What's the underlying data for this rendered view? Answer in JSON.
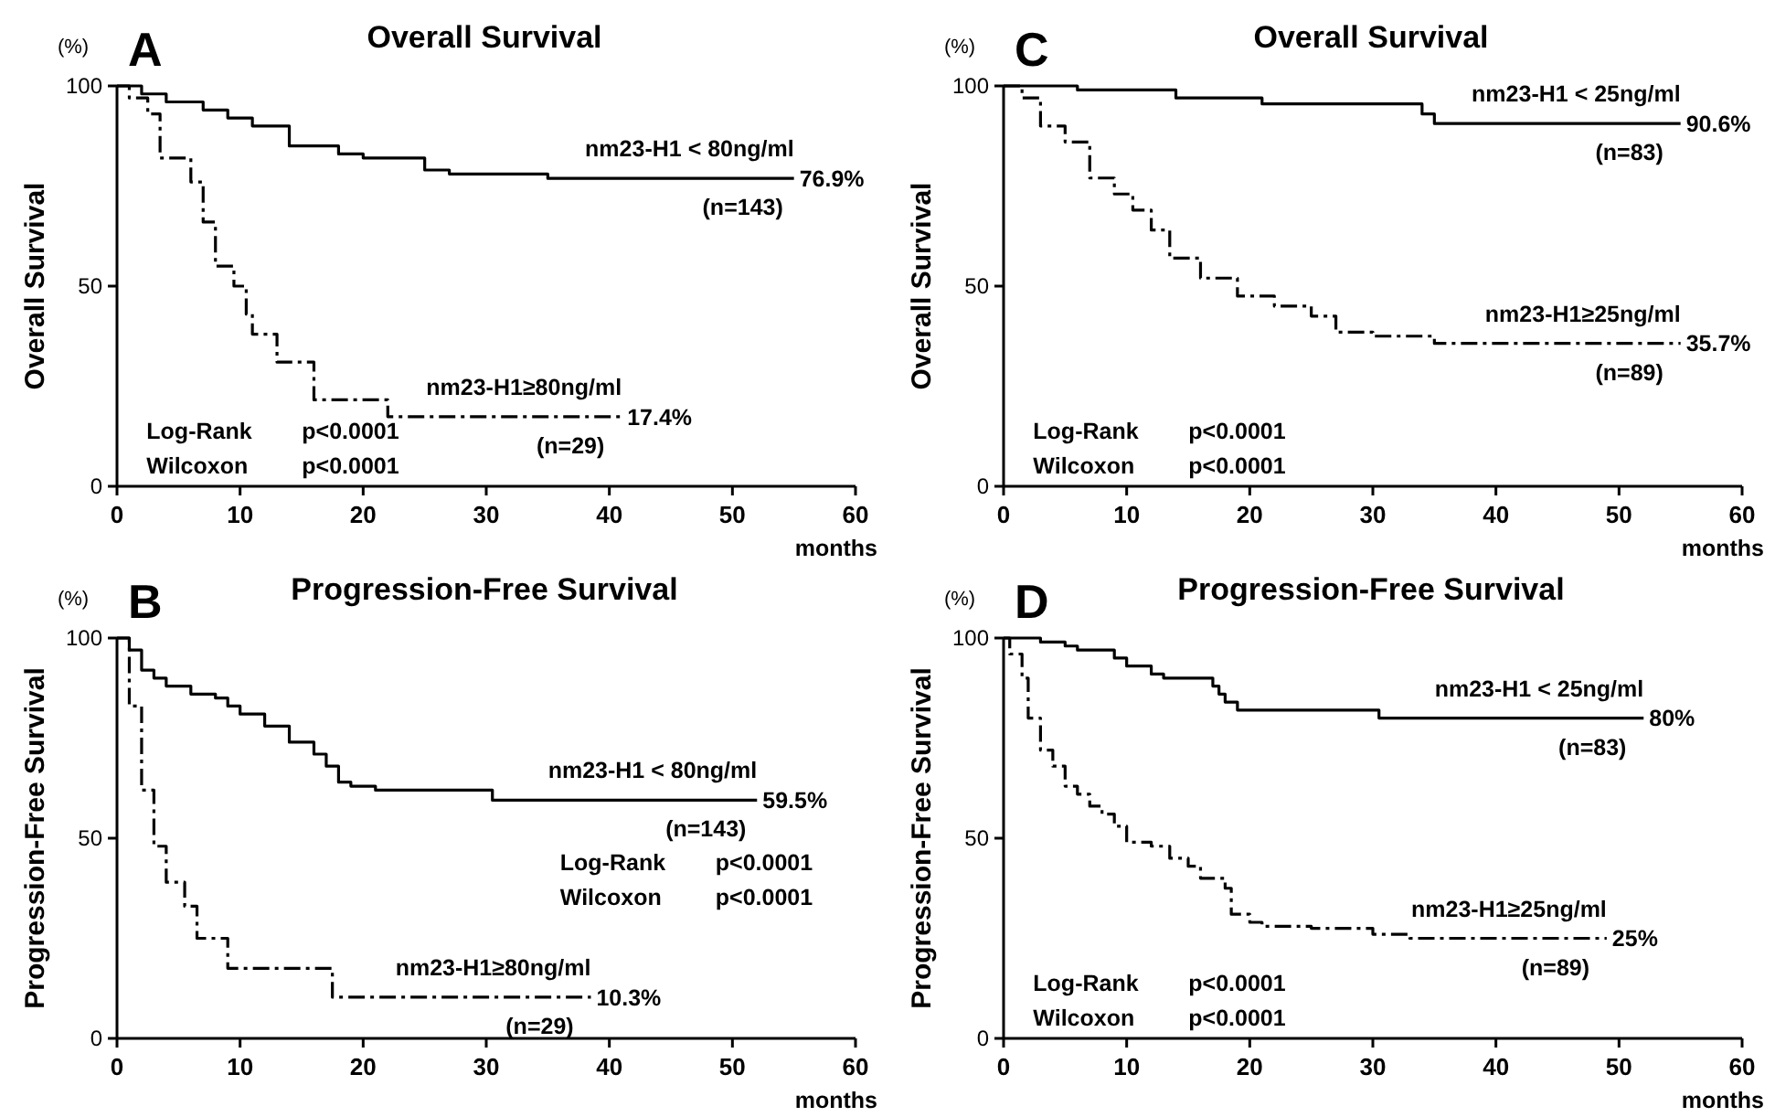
{
  "chart_data": [
    {
      "type": "step",
      "title": "Overall Survival",
      "ylabel": "Overall Survival",
      "xlabel": "months",
      "xlim": [
        0,
        60
      ],
      "xticks": [
        0,
        10,
        20,
        30,
        40,
        50,
        60
      ],
      "ylim": [
        0,
        100
      ],
      "yticks": [
        0,
        50,
        100
      ],
      "legend": false,
      "grid": false,
      "annotations": [
        "A",
        "(%)",
        "Log-Rank",
        "p<0.0001",
        "Wilcoxon",
        "p<0.0001",
        "(n=143)",
        "(n=29)",
        {
          "text": "76.9%",
          "x": 55,
          "y": 76.9
        },
        {
          "text": "17.4%",
          "x": 41,
          "y": 17.4
        }
      ],
      "series": [
        {
          "name": "nm23-H1 < 80ng/ml",
          "color": "#000000",
          "line_style": "solid",
          "x": [
            0,
            2,
            4,
            7,
            9,
            11,
            14,
            18,
            20,
            25,
            27,
            35,
            55
          ],
          "values": [
            100,
            98,
            96,
            94,
            92,
            90,
            85,
            83,
            82,
            79,
            78,
            76.9,
            76.9
          ]
        },
        {
          "name": "nm23-H1≥80ng/ml",
          "color": "#000000",
          "line_style": "dashed",
          "x": [
            0,
            1,
            2.5,
            3.5,
            6,
            7,
            8,
            9.5,
            10.5,
            11,
            13,
            16,
            22,
            41
          ],
          "values": [
            100,
            97,
            93,
            82,
            76,
            66,
            55,
            50,
            43,
            38,
            31,
            21.6,
            17.4,
            17.4
          ]
        }
      ]
    },
    {
      "type": "step",
      "title": "Overall Survival",
      "ylabel": "Overall Survival",
      "xlabel": "months",
      "xlim": [
        0,
        60
      ],
      "xticks": [
        0,
        10,
        20,
        30,
        40,
        50,
        60
      ],
      "ylim": [
        0,
        100
      ],
      "yticks": [
        0,
        50,
        100
      ],
      "legend": false,
      "grid": false,
      "annotations": [
        "C",
        "(%)",
        "Log-Rank",
        "p<0.0001",
        "Wilcoxon",
        "p<0.0001",
        "(n=83)",
        "(n=89)",
        {
          "text": "90.6%",
          "x": 55,
          "y": 90.6
        },
        {
          "text": "35.7%",
          "x": 55,
          "y": 35.7
        }
      ],
      "series": [
        {
          "name": "nm23-H1 < 25ng/ml",
          "color": "#000000",
          "line_style": "solid",
          "x": [
            0,
            6,
            14,
            21,
            34,
            35,
            55
          ],
          "values": [
            100,
            99,
            97,
            95.5,
            93,
            90.6,
            90.6
          ]
        },
        {
          "name": "nm23-H1≥25ng/ml",
          "color": "#000000",
          "line_style": "dashed",
          "x": [
            0,
            1.5,
            3,
            5,
            7,
            9,
            10.5,
            12,
            13.5,
            16,
            19,
            22,
            25,
            27,
            30,
            35,
            55
          ],
          "values": [
            100,
            97,
            90,
            86,
            77,
            73,
            69,
            64,
            57,
            52,
            47.5,
            45,
            42.5,
            38.5,
            37.5,
            35.7,
            35.7
          ]
        }
      ]
    },
    {
      "type": "step",
      "title": "Progression-Free Survival",
      "ylabel": "Progression-Free Survival",
      "xlabel": "months",
      "xlim": [
        0,
        60
      ],
      "xticks": [
        0,
        10,
        20,
        30,
        40,
        50,
        60
      ],
      "ylim": [
        0,
        100
      ],
      "yticks": [
        0,
        50,
        100
      ],
      "legend": false,
      "grid": false,
      "annotations": [
        "B",
        "(%)",
        "Log-Rank",
        "p<0.0001",
        "Wilcoxon",
        "p<0.0001",
        "(n=143)",
        "(n=29)",
        {
          "text": "59.5%",
          "x": 52,
          "y": 59.5
        },
        {
          "text": "10.3%",
          "x": 38.5,
          "y": 10.3
        }
      ],
      "series": [
        {
          "name": "nm23-H1 < 80ng/ml",
          "color": "#000000",
          "line_style": "solid",
          "x": [
            0,
            1,
            2,
            3,
            4,
            6,
            8,
            9,
            10,
            12,
            14,
            16,
            17,
            18,
            19,
            21,
            30.5,
            52
          ],
          "values": [
            100,
            97,
            92,
            90,
            88,
            86,
            85,
            83,
            81,
            78,
            74,
            71,
            68,
            64,
            63,
            62,
            59.5,
            59.5
          ]
        },
        {
          "name": "nm23-H1≥80ng/ml",
          "color": "#000000",
          "line_style": "dashed",
          "x": [
            0,
            1,
            2,
            3,
            4,
            5.5,
            6.5,
            9,
            17.5,
            38.5
          ],
          "values": [
            100,
            83,
            62,
            48,
            39,
            33,
            25,
            17.5,
            10.3,
            10.3
          ]
        }
      ]
    },
    {
      "type": "step",
      "title": "Progression-Free Survival",
      "ylabel": "Progression-Free Survival",
      "xlabel": "months",
      "xlim": [
        0,
        60
      ],
      "xticks": [
        0,
        10,
        20,
        30,
        40,
        50,
        60
      ],
      "ylim": [
        0,
        100
      ],
      "yticks": [
        0,
        50,
        100
      ],
      "legend": false,
      "grid": false,
      "annotations": [
        "D",
        "(%)",
        "Log-Rank",
        "p<0.0001",
        "Wilcoxon",
        "p<0.0001",
        "(n=83)",
        "(n=89)",
        {
          "text": "80%",
          "x": 52,
          "y": 80
        },
        {
          "text": "25%",
          "x": 49,
          "y": 25
        }
      ],
      "series": [
        {
          "name": "nm23-H1 < 25ng/ml",
          "color": "#000000",
          "line_style": "solid",
          "x": [
            0,
            3,
            5,
            6,
            9,
            10,
            12,
            13,
            17,
            17.5,
            18,
            19,
            30.5,
            52
          ],
          "values": [
            100,
            99,
            98,
            97,
            95,
            93,
            91,
            90,
            88,
            86,
            84,
            82,
            80,
            80
          ]
        },
        {
          "name": "nm23-H1≥25ng/ml",
          "color": "#000000",
          "line_style": "dashed",
          "x": [
            0,
            0.5,
            1.5,
            2,
            3,
            4,
            5,
            6,
            7,
            8,
            9,
            10,
            12,
            13.5,
            15,
            16,
            18,
            18.5,
            20,
            21,
            25,
            30,
            33,
            49
          ],
          "values": [
            100,
            96,
            90,
            80,
            72,
            68,
            63,
            61,
            58,
            56,
            53,
            49,
            48,
            45,
            43,
            40,
            37.5,
            31,
            29,
            28,
            27.5,
            26,
            25,
            25
          ]
        }
      ]
    }
  ]
}
